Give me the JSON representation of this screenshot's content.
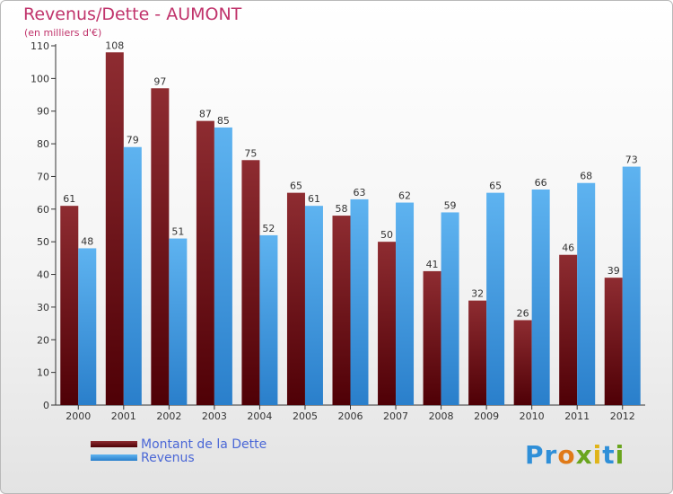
{
  "header": {
    "title": "Revenus/Dette - AUMONT",
    "subtitle": "(en milliers d'€)"
  },
  "colors": {
    "dette": "#8e2a2e",
    "revenus": "#4da3e4",
    "title": "#c0336b"
  },
  "legend": {
    "dette_label": "Montant de la Dette",
    "revenus_label": "Revenus"
  },
  "logo": {
    "letters": [
      "P",
      "r",
      "o",
      "x",
      "i",
      "t",
      "i"
    ],
    "colors": [
      "#2f8fd8",
      "#2f8fd8",
      "#e07a18",
      "#6aa51e",
      "#e0b418",
      "#2f8fd8",
      "#6aa51e"
    ]
  },
  "chart_data": {
    "type": "bar",
    "categories": [
      "2000",
      "2001",
      "2002",
      "2003",
      "2004",
      "2005",
      "2006",
      "2007",
      "2008",
      "2009",
      "2010",
      "2011",
      "2012"
    ],
    "series": [
      {
        "name": "Montant de la Dette",
        "values": [
          61,
          108,
          97,
          87,
          75,
          65,
          58,
          50,
          41,
          32,
          26,
          46,
          39
        ]
      },
      {
        "name": "Revenus",
        "values": [
          48,
          79,
          51,
          85,
          52,
          61,
          63,
          62,
          59,
          65,
          66,
          68,
          73
        ]
      }
    ],
    "ylim": [
      0,
      110
    ],
    "yticks": [
      0,
      10,
      20,
      30,
      40,
      50,
      60,
      70,
      80,
      90,
      100,
      110
    ],
    "grid": false,
    "legend_position": "bottom-left"
  }
}
